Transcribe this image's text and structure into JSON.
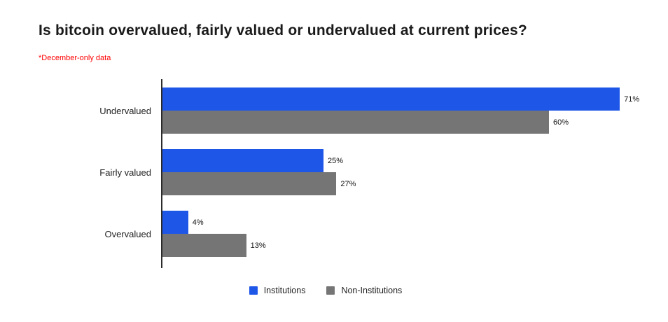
{
  "chart_data": {
    "type": "bar",
    "orientation": "horizontal",
    "title": "Is bitcoin overvalued, fairly valued or undervalued at current prices?",
    "subtitle": "*December-only data",
    "categories": [
      "Undervalued",
      "Fairly valued",
      "Overvalued"
    ],
    "series": [
      {
        "name": "Institutions",
        "color": "#1e56e8",
        "values": [
          71,
          25,
          4
        ]
      },
      {
        "name": "Non-Institutions",
        "color": "#757575",
        "values": [
          60,
          27,
          13
        ]
      }
    ],
    "value_suffix": "%",
    "xlim": [
      0,
      75
    ],
    "grid": false,
    "data_labels": true,
    "legend_position": "bottom",
    "axis_color": "#2b2b2b",
    "subtitle_color": "#ff0000"
  }
}
